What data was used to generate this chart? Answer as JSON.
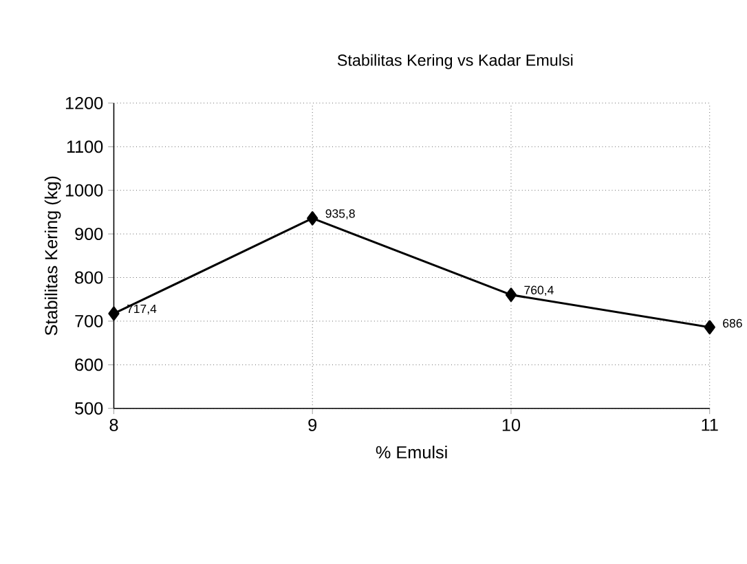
{
  "chart_data": {
    "type": "line",
    "title": "Stabilitas Kering vs Kadar Emulsi",
    "xlabel": "% Emulsi",
    "ylabel": "Stabilitas Kering (kg)",
    "x": [
      8,
      9,
      10,
      11
    ],
    "series": [
      {
        "color": "#000000",
        "values": [
          717.4,
          935.8,
          760.4,
          686
        ],
        "value_labels": [
          "717,4",
          "935,8",
          "760,4",
          "686"
        ]
      }
    ],
    "xlim": [
      8,
      11
    ],
    "xticks": [
      8,
      9,
      10,
      11
    ],
    "ylim": [
      500,
      1200
    ],
    "yticks": [
      500,
      600,
      700,
      800,
      900,
      1000,
      1100,
      1200
    ],
    "grid": true,
    "marker": "diamond",
    "line_style": "solid"
  }
}
